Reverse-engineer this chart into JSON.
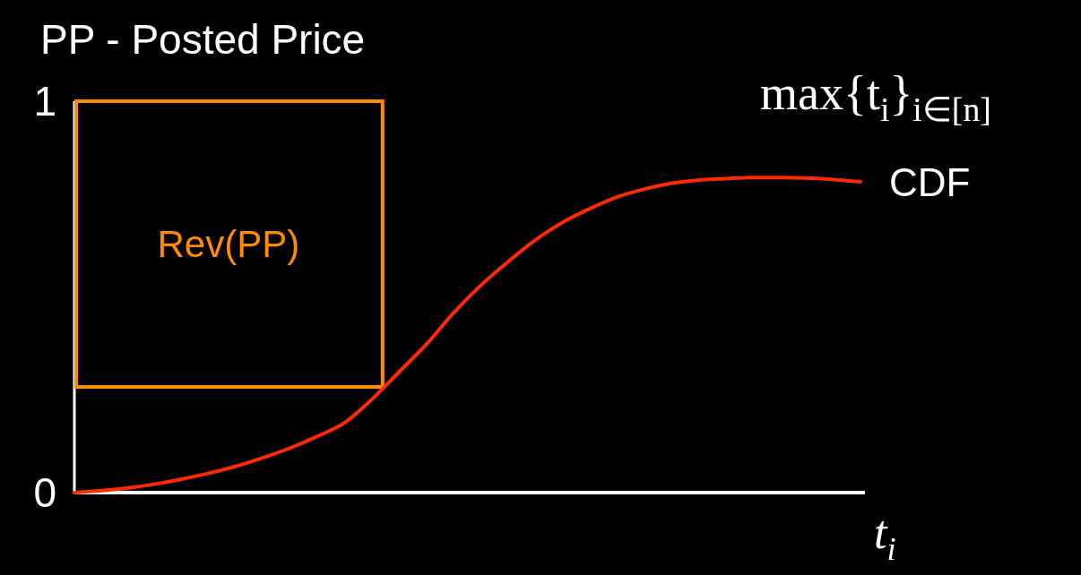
{
  "chart_data": {
    "type": "line",
    "title": "PP - Posted Price",
    "xlabel": "t$_{i}$",
    "categories": [
      null,
      null,
      null,
      null,
      null,
      null,
      null,
      null,
      null,
      null,
      null,
      null,
      null,
      null,
      null,
      null,
      null,
      null,
      null,
      null,
      null,
      null,
      null,
      null,
      null,
      null,
      null,
      null,
      null,
      null
    ],
    "series": [
      {
        "name": "CDF",
        "color": "#ff2a00",
        "values": [
          0,
          0.005,
          0.012,
          0.022,
          0.035,
          0.05,
          0.068,
          0.09,
          0.115,
          0.145,
          0.18,
          0.24,
          0.31,
          0.38,
          0.46,
          0.53,
          0.59,
          0.645,
          0.69,
          0.725,
          0.755,
          0.775,
          0.79,
          0.798,
          0.802,
          0.805,
          0.805,
          0.804,
          0.8,
          0.794
        ]
      }
    ],
    "ylim": [
      0,
      1
    ],
    "yticks": [
      0,
      1
    ],
    "grid": false,
    "legend": false,
    "marker": "none",
    "annotations": [
      "Rev(PP)",
      "max{t$_{i}$}$_{i∈[n]}$"
    ]
  }
}
